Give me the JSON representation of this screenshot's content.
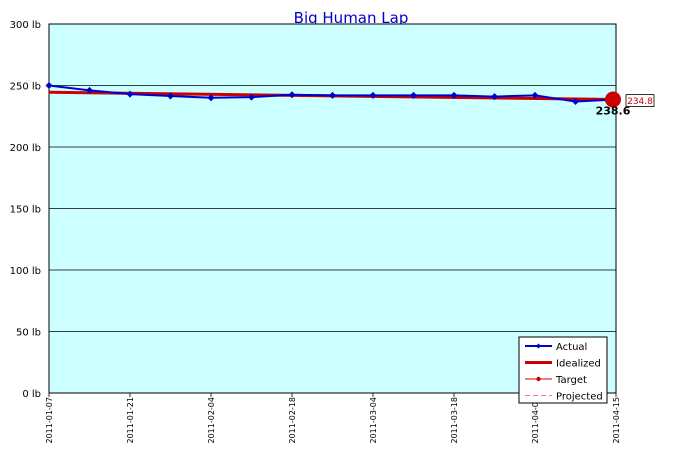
{
  "colors": {
    "background": "#ffffff",
    "plot_bg": "#ccffff",
    "grid": "#000000",
    "actual": "#0000cc",
    "idealized": "#cc0000",
    "target": "#cc0000",
    "projected": "#ff66cc"
  },
  "chart_data": {
    "type": "line",
    "title": "Big Human Lap",
    "xlabel": "",
    "ylabel": "",
    "ylim": [
      0,
      300
    ],
    "y_ticks": [
      0,
      50,
      100,
      150,
      200,
      250,
      300
    ],
    "y_tick_labels": [
      "0 lb",
      "50 lb",
      "100 lb",
      "150 lb",
      "200 lb",
      "250 lb",
      "300 lb"
    ],
    "x_range": [
      "2011-01-07",
      "2011-04-15"
    ],
    "x_ticks": [
      "2011-01-07",
      "2011-01-21",
      "2011-02-04",
      "2011-02-18",
      "2011-03-04",
      "2011-03-18",
      "2011-04-01",
      "2011-04-15"
    ],
    "grid": true,
    "legend_position": "bottom-right",
    "series": [
      {
        "name": "Actual",
        "x": [
          "2011-01-07",
          "2011-01-14",
          "2011-01-21",
          "2011-01-28",
          "2011-02-04",
          "2011-02-11",
          "2011-02-18",
          "2011-02-25",
          "2011-03-04",
          "2011-03-11",
          "2011-03-18",
          "2011-03-25",
          "2011-04-01",
          "2011-04-08",
          "2011-04-15"
        ],
        "values": [
          250,
          246,
          243,
          241.5,
          240,
          240.5,
          242.5,
          242,
          242,
          242,
          242,
          241,
          242,
          237,
          238.6
        ]
      },
      {
        "name": "Idealized",
        "x": [
          "2011-01-07",
          "2011-04-15"
        ],
        "values": [
          244.5,
          238.6
        ]
      },
      {
        "name": "Target",
        "x": [
          "2011-04-15"
        ],
        "values": [
          234.8
        ]
      },
      {
        "name": "Projected",
        "x": [],
        "values": []
      }
    ],
    "annotations": {
      "last_value": "238.6",
      "target_value": "234.8"
    }
  }
}
